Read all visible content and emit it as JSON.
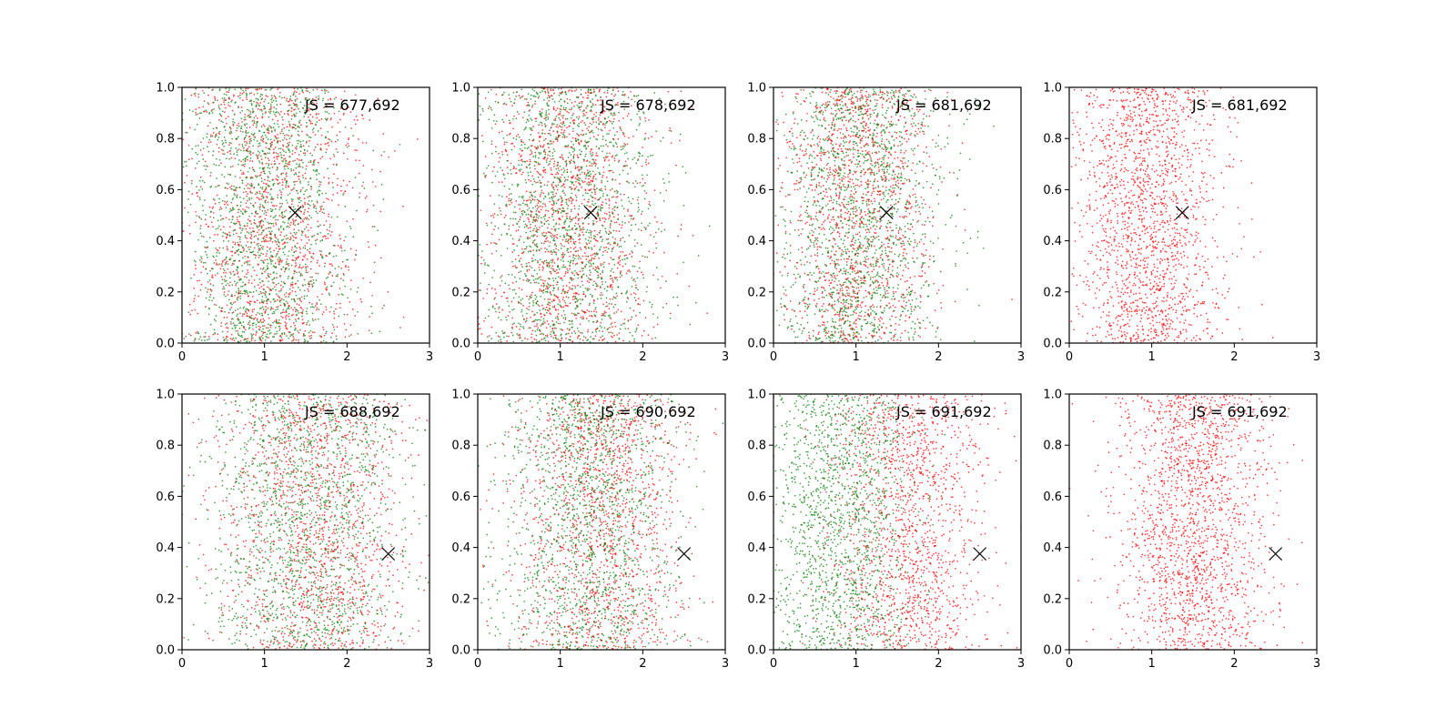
{
  "chart_data": [
    {
      "type": "scatter",
      "label": "JS = 677,692",
      "xlim": [
        0,
        3
      ],
      "ylim": [
        0,
        1
      ],
      "xticks": [
        "0",
        "1",
        "2",
        "3"
      ],
      "yticks": [
        "0.0",
        "0.2",
        "0.4",
        "0.6",
        "0.8",
        "1.0"
      ],
      "grid": false,
      "marker": {
        "x": 1.37,
        "y": 0.51
      },
      "colors": {
        "red": "#ff0000",
        "green": "#008000"
      },
      "series": [
        {
          "color": "#ff0000",
          "x_center": 1.1,
          "x_spread": 0.55,
          "count": 1500
        },
        {
          "color": "#008000",
          "x_center": 1.0,
          "x_spread": 0.5,
          "count": 1500
        }
      ]
    },
    {
      "type": "scatter",
      "label": "JS = 678,692",
      "xlim": [
        0,
        3
      ],
      "ylim": [
        0,
        1
      ],
      "xticks": [
        "0",
        "1",
        "2",
        "3"
      ],
      "yticks": [
        "0.0",
        "0.2",
        "0.4",
        "0.6",
        "0.8",
        "1.0"
      ],
      "grid": false,
      "marker": {
        "x": 1.37,
        "y": 0.51
      },
      "colors": {
        "red": "#ff0000",
        "green": "#008000"
      },
      "series": [
        {
          "color": "#ff0000",
          "x_center": 1.1,
          "x_spread": 0.5,
          "count": 1500
        },
        {
          "color": "#008000",
          "x_center": 1.1,
          "x_spread": 0.55,
          "count": 1500
        }
      ]
    },
    {
      "type": "scatter",
      "label": "JS = 681,692",
      "xlim": [
        0,
        3
      ],
      "ylim": [
        0,
        1
      ],
      "xticks": [
        "0",
        "1",
        "2",
        "3"
      ],
      "yticks": [
        "0.0",
        "0.2",
        "0.4",
        "0.6",
        "0.8",
        "1.0"
      ],
      "grid": false,
      "marker": {
        "x": 1.37,
        "y": 0.51
      },
      "colors": {
        "red": "#ff0000",
        "green": "#008000"
      },
      "series": [
        {
          "color": "#ff0000",
          "x_center": 1.0,
          "x_spread": 0.45,
          "count": 1500
        },
        {
          "color": "#008000",
          "x_center": 1.05,
          "x_spread": 0.5,
          "count": 1500
        }
      ]
    },
    {
      "type": "scatter",
      "label": "JS = 681,692",
      "xlim": [
        0,
        3
      ],
      "ylim": [
        0,
        1
      ],
      "xticks": [
        "0",
        "1",
        "2",
        "3"
      ],
      "yticks": [
        "0.0",
        "0.2",
        "0.4",
        "0.6",
        "0.8",
        "1.0"
      ],
      "grid": false,
      "marker": {
        "x": 1.37,
        "y": 0.51
      },
      "colors": {
        "red": "#ff0000",
        "green": "#008000"
      },
      "series": [
        {
          "color": "#ff0000",
          "x_center": 0.95,
          "x_spread": 0.45,
          "count": 1800
        }
      ]
    },
    {
      "type": "scatter",
      "label": "JS = 688,692",
      "xlim": [
        0,
        3
      ],
      "ylim": [
        0,
        1
      ],
      "xticks": [
        "0",
        "1",
        "2",
        "3"
      ],
      "yticks": [
        "0.0",
        "0.2",
        "0.4",
        "0.6",
        "0.8",
        "1.0"
      ],
      "grid": false,
      "marker": {
        "x": 2.5,
        "y": 0.375
      },
      "colors": {
        "red": "#ff0000",
        "green": "#008000"
      },
      "series": [
        {
          "color": "#ff0000",
          "x_center": 1.6,
          "x_spread": 0.6,
          "count": 1500
        },
        {
          "color": "#008000",
          "x_center": 1.5,
          "x_spread": 0.6,
          "count": 1500
        }
      ]
    },
    {
      "type": "scatter",
      "label": "JS = 690,692",
      "xlim": [
        0,
        3
      ],
      "ylim": [
        0,
        1
      ],
      "xticks": [
        "0",
        "1",
        "2",
        "3"
      ],
      "yticks": [
        "0.0",
        "0.2",
        "0.4",
        "0.6",
        "0.8",
        "1.0"
      ],
      "grid": false,
      "marker": {
        "x": 2.5,
        "y": 0.375
      },
      "colors": {
        "red": "#ff0000",
        "green": "#008000"
      },
      "series": [
        {
          "color": "#ff0000",
          "x_center": 1.5,
          "x_spread": 0.5,
          "count": 1500
        },
        {
          "color": "#008000",
          "x_center": 1.3,
          "x_spread": 0.55,
          "count": 1500
        }
      ]
    },
    {
      "type": "scatter",
      "label": "JS = 691,692",
      "xlim": [
        0,
        3
      ],
      "ylim": [
        0,
        1
      ],
      "xticks": [
        "0",
        "1",
        "2",
        "3"
      ],
      "yticks": [
        "0.0",
        "0.2",
        "0.4",
        "0.6",
        "0.8",
        "1.0"
      ],
      "grid": false,
      "marker": {
        "x": 2.5,
        "y": 0.375
      },
      "colors": {
        "red": "#ff0000",
        "green": "#008000"
      },
      "series": [
        {
          "color": "#ff0000",
          "x_center": 1.6,
          "x_spread": 0.45,
          "count": 1500
        },
        {
          "color": "#008000",
          "x_center": 0.8,
          "x_spread": 0.45,
          "count": 1500
        }
      ]
    },
    {
      "type": "scatter",
      "label": "JS = 691,692",
      "xlim": [
        0,
        3
      ],
      "ylim": [
        0,
        1
      ],
      "xticks": [
        "0",
        "1",
        "2",
        "3"
      ],
      "yticks": [
        "0.0",
        "0.2",
        "0.4",
        "0.6",
        "0.8",
        "1.0"
      ],
      "grid": false,
      "marker": {
        "x": 2.5,
        "y": 0.375
      },
      "colors": {
        "red": "#ff0000",
        "green": "#008000"
      },
      "series": [
        {
          "color": "#ff0000",
          "x_center": 1.5,
          "x_spread": 0.45,
          "count": 1800
        }
      ]
    }
  ]
}
